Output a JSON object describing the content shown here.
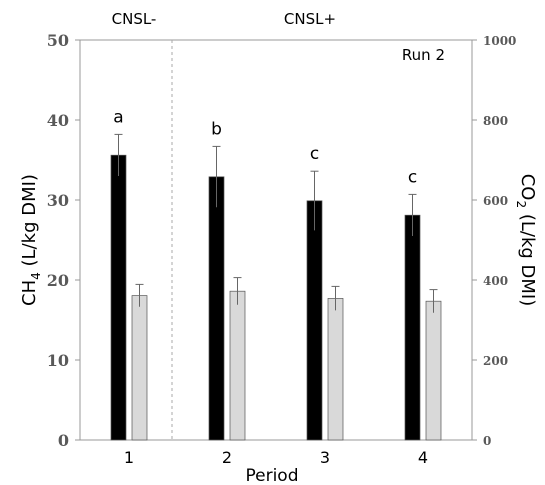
{
  "chart_data": {
    "type": "bar",
    "annotation": "Run 2",
    "groups": [
      "CNSL-",
      "CNSL+"
    ],
    "x": [
      "1",
      "2",
      "3",
      "4"
    ],
    "xlabel": "Period",
    "ylabel_left": "CH4 (L/kg DMI)",
    "ylabel_right": "CO2 (L/kg DMI)",
    "ylim_left": [
      0,
      50
    ],
    "ylim_right": [
      0,
      1000
    ],
    "yticks_left": [
      "0",
      "10",
      "20",
      "30",
      "40",
      "50"
    ],
    "yticks_right": [
      "0",
      "200",
      "400",
      "600",
      "800",
      "1000"
    ],
    "series": [
      {
        "axis": "left",
        "color": "#000000",
        "values": [
          35.6,
          32.9,
          29.9,
          28.1
        ],
        "errors": [
          2.6,
          3.8,
          3.7,
          2.6
        ],
        "letters": [
          "a",
          "b",
          "c",
          "c"
        ]
      },
      {
        "axis": "right",
        "color": "#d9d9d9",
        "values": [
          361,
          372,
          354,
          347
        ],
        "errors": [
          28,
          34,
          30,
          29
        ]
      }
    ]
  }
}
